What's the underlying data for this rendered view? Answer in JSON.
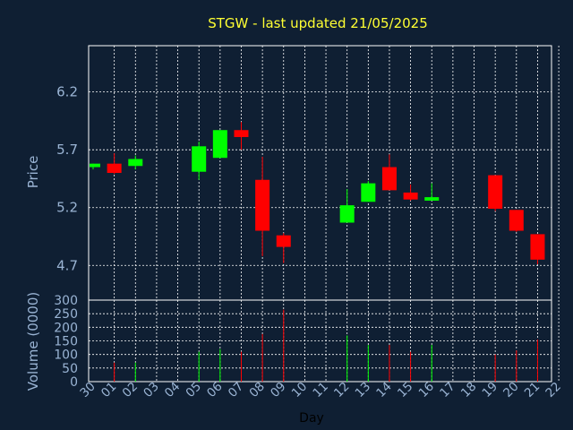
{
  "chart_data": {
    "type": "candlestick",
    "title": "STGW - last updated 21/05/2025",
    "xlabel": "Day",
    "x_ticks": [
      "30",
      "01",
      "02",
      "03",
      "04",
      "05",
      "06",
      "07",
      "08",
      "09",
      "10",
      "11",
      "12",
      "13",
      "14",
      "15",
      "16",
      "17",
      "18",
      "19",
      "20",
      "21",
      "22"
    ],
    "price_panel": {
      "ylabel": "Price",
      "ylim": [
        4.4,
        6.6
      ],
      "y_ticks": [
        "4.7",
        "5.2",
        "5.7",
        "6.2"
      ],
      "grid": true,
      "up_color": "#00ff00",
      "down_color": "#ff0000"
    },
    "volume_panel": {
      "ylabel": "Volume (0000)",
      "ylim": [
        0,
        300
      ],
      "y_ticks": [
        "0",
        "50",
        "100",
        "150",
        "200",
        "250",
        "300"
      ],
      "grid": true
    },
    "candles": [
      {
        "day": "30",
        "open": 5.55,
        "high": 5.58,
        "low": 5.53,
        "close": 5.58,
        "volume": null
      },
      {
        "day": "01",
        "open": 5.58,
        "high": 5.67,
        "low": 5.49,
        "close": 5.5,
        "volume": 70
      },
      {
        "day": "02",
        "open": 5.56,
        "high": 5.65,
        "low": 5.53,
        "close": 5.62,
        "volume": 70
      },
      {
        "day": "05",
        "open": 5.51,
        "high": 5.77,
        "low": 5.44,
        "close": 5.73,
        "volume": 110
      },
      {
        "day": "06",
        "open": 5.63,
        "high": 5.87,
        "low": 5.63,
        "close": 5.87,
        "volume": 120
      },
      {
        "day": "07",
        "open": 5.87,
        "high": 5.94,
        "low": 5.7,
        "close": 5.81,
        "volume": 110
      },
      {
        "day": "08",
        "open": 5.44,
        "high": 5.64,
        "low": 4.78,
        "close": 5.0,
        "volume": 175
      },
      {
        "day": "09",
        "open": 4.96,
        "high": 4.98,
        "low": 4.72,
        "close": 4.86,
        "volume": 265
      },
      {
        "day": "12",
        "open": 5.07,
        "high": 5.36,
        "low": 5.07,
        "close": 5.22,
        "volume": 170
      },
      {
        "day": "13",
        "open": 5.25,
        "high": 5.43,
        "low": 5.25,
        "close": 5.41,
        "volume": 135
      },
      {
        "day": "14",
        "open": 5.55,
        "high": 5.66,
        "low": 5.35,
        "close": 5.35,
        "volume": 135
      },
      {
        "day": "15",
        "open": 5.33,
        "high": 5.4,
        "low": 5.26,
        "close": 5.27,
        "volume": 110
      },
      {
        "day": "16",
        "open": 5.26,
        "high": 5.41,
        "low": 5.26,
        "close": 5.29,
        "volume": 135
      },
      {
        "day": "19",
        "open": 5.48,
        "high": 5.48,
        "low": 5.17,
        "close": 5.19,
        "volume": 100
      },
      {
        "day": "20",
        "open": 5.18,
        "high": 5.18,
        "low": 4.99,
        "close": 5.0,
        "volume": 115
      },
      {
        "day": "21",
        "open": 4.97,
        "high": 4.97,
        "low": 4.71,
        "close": 4.75,
        "volume": 155
      }
    ]
  }
}
